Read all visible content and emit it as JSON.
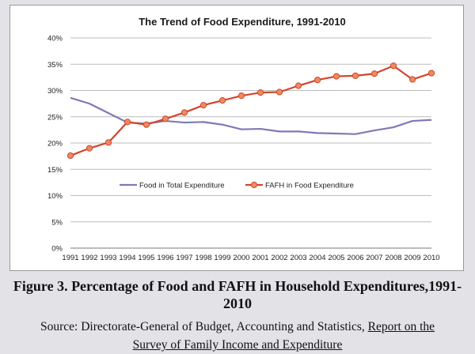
{
  "chart_data": {
    "type": "line",
    "title": "The Trend of Food Expenditure, 1991-2010",
    "xlabel": "",
    "ylabel": "",
    "categories": [
      "1991",
      "1992",
      "1993",
      "1994",
      "1995",
      "1996",
      "1997",
      "1998",
      "1999",
      "2000",
      "2001",
      "2002",
      "2003",
      "2004",
      "2005",
      "2006",
      "2007",
      "2008",
      "2009",
      "2010"
    ],
    "ylim": [
      0,
      40
    ],
    "yticks": [
      "0%",
      "5%",
      "10%",
      "15%",
      "20%",
      "25%",
      "30%",
      "35%",
      "40%"
    ],
    "grid": true,
    "legend_position": "center",
    "series": [
      {
        "name": "Food in Total Expenditure",
        "color": "#7e79b5",
        "marker": "line",
        "values": [
          28.6,
          27.5,
          25.7,
          23.9,
          23.7,
          24.2,
          23.9,
          24.0,
          23.5,
          22.6,
          22.7,
          22.2,
          22.2,
          21.9,
          21.8,
          21.7,
          22.4,
          23.0,
          24.2,
          24.4
        ]
      },
      {
        "name": "FAFH in Food Expenditure",
        "color": "#d1452c",
        "marker": "circle",
        "values": [
          17.6,
          19.0,
          20.1,
          24.0,
          23.5,
          24.6,
          25.8,
          27.2,
          28.1,
          29.0,
          29.6,
          29.7,
          30.9,
          32.0,
          32.7,
          32.8,
          33.2,
          34.7,
          32.1,
          33.3
        ]
      }
    ]
  },
  "caption": {
    "figure": "Figure 3. Percentage of Food and FAFH in Household Expenditures,1991-2010",
    "source_prefix": "Source: Directorate-General of Budget, Accounting and Statistics, ",
    "report_title_line1": "Report on the",
    "report_title_line2": "Survey of Family Income and Expenditure"
  }
}
